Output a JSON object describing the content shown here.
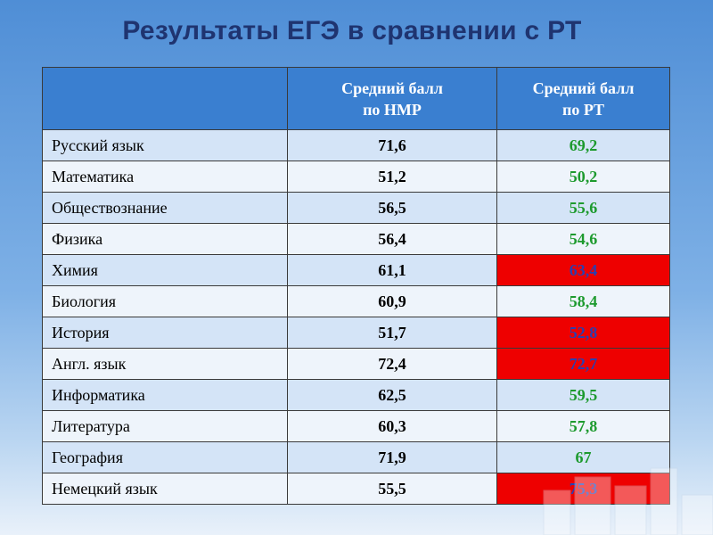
{
  "title": "Результаты ЕГЭ в сравнении с РТ",
  "table": {
    "header": {
      "col_nmp_line1": "Средний балл",
      "col_nmp_line2": "по НМР",
      "col_rt_line1": "Средний балл",
      "col_rt_line2": "по РТ"
    },
    "rows": [
      {
        "subject": "Русский язык",
        "nmp": "71,6",
        "rt": "69,2",
        "rt_higher": false
      },
      {
        "subject": "Математика",
        "nmp": "51,2",
        "rt": "50,2",
        "rt_higher": false
      },
      {
        "subject": "Обществознание",
        "nmp": "56,5",
        "rt": "55,6",
        "rt_higher": false
      },
      {
        "subject": "Физика",
        "nmp": "56,4",
        "rt": "54,6",
        "rt_higher": false
      },
      {
        "subject": "Химия",
        "nmp": "61,1",
        "rt": "63,4",
        "rt_higher": true
      },
      {
        "subject": "Биология",
        "nmp": "60,9",
        "rt": "58,4",
        "rt_higher": false
      },
      {
        "subject": "История",
        "nmp": "51,7",
        "rt": "52,8",
        "rt_higher": true
      },
      {
        "subject": "Англ. язык",
        "nmp": "72,4",
        "rt": "72,7",
        "rt_higher": true
      },
      {
        "subject": "Информатика",
        "nmp": "62,5",
        "rt": "59,5",
        "rt_higher": false
      },
      {
        "subject": "Литература",
        "nmp": "60,3",
        "rt": "57,8",
        "rt_higher": false
      },
      {
        "subject": "География",
        "nmp": "71,9",
        "rt": "67",
        "rt_higher": false
      },
      {
        "subject": "Немецкий язык",
        "nmp": "55,5",
        "rt": "75,3",
        "rt_higher": true
      }
    ]
  },
  "colors": {
    "title": "#1f3470",
    "header_bg": "#3a7fd0",
    "rt_lower_text": "#1d9a2e",
    "rt_higher_bg": "#ee0000",
    "rt_higher_text": "#2a3fb0"
  }
}
